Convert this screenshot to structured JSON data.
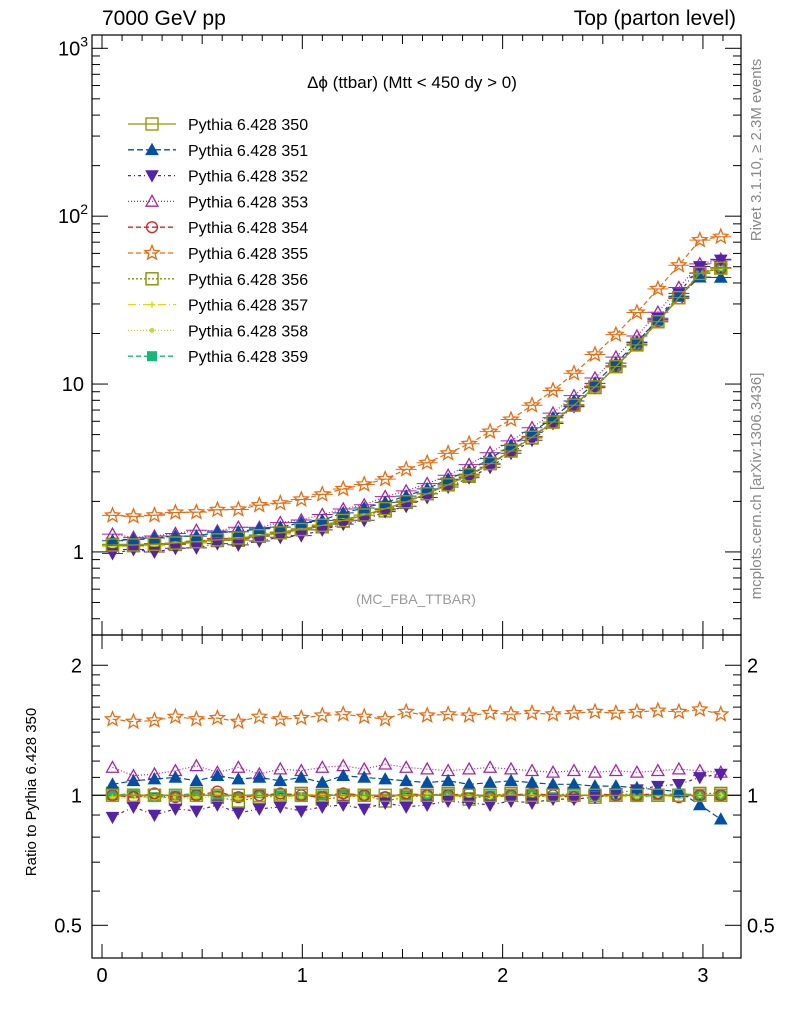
{
  "header": {
    "left": "7000 GeV pp",
    "right": "Top (parton level)"
  },
  "side_labels": {
    "rivet": "Rivet 3.1.10, ≥ 2.3M events",
    "mcplots": "mcplots.cern.ch [arXiv:1306.3436]"
  },
  "chart_data": {
    "type": "line",
    "title": "Δϕ (ttbar) (Mtt < 450 dy > 0)",
    "analysis_tag": "(MC_FBA_TTBAR)",
    "ratio_ylabel": "Ratio to Pythia 6.428 350",
    "main_ylim": [
      0.32,
      1200
    ],
    "main_yscale": "log",
    "ratio_ylim": [
      0.42,
      2.35
    ],
    "ratio_yscale": "log",
    "xlim": [
      -0.05,
      3.19
    ],
    "xticks": [
      {
        "v": 0,
        "label": "0"
      },
      {
        "v": 1,
        "label": "1"
      },
      {
        "v": 2,
        "label": "2"
      },
      {
        "v": 3,
        "label": "3"
      }
    ],
    "main_yticks": [
      {
        "v": 1,
        "label": "1"
      },
      {
        "v": 10,
        "label": "10"
      },
      {
        "v": 100,
        "label": "10",
        "sup": "2"
      },
      {
        "v": 1000,
        "label": "10",
        "sup": "3"
      }
    ],
    "ratio_yticks": [
      {
        "v": 0.5,
        "label": "0.5"
      },
      {
        "v": 1,
        "label": "1"
      },
      {
        "v": 2,
        "label": "2"
      }
    ],
    "x": [
      0.0524,
      0.1571,
      0.2618,
      0.3665,
      0.4712,
      0.576,
      0.6807,
      0.7854,
      0.8901,
      0.9948,
      1.0996,
      1.2043,
      1.309,
      1.4137,
      1.5184,
      1.6232,
      1.7279,
      1.8326,
      1.9373,
      2.042,
      2.1468,
      2.2515,
      2.3562,
      2.4609,
      2.5656,
      2.6704,
      2.7751,
      2.8798,
      2.9845,
      3.0892
    ],
    "reference_values": [
      1.1,
      1.1,
      1.11,
      1.13,
      1.15,
      1.18,
      1.21,
      1.25,
      1.3,
      1.36,
      1.44,
      1.54,
      1.66,
      1.81,
      1.99,
      2.22,
      2.51,
      2.88,
      3.36,
      3.99,
      4.82,
      5.94,
      7.48,
      9.62,
      12.7,
      17.1,
      23.5,
      32.7,
      45.6,
      49.0
    ],
    "series": [
      {
        "name": "Pythia 6.428 350",
        "color": "#999900",
        "dash": "",
        "marker": "square-open",
        "ratio": [
          1,
          1,
          1,
          1,
          1,
          1,
          1,
          1,
          1,
          1,
          1,
          1,
          1,
          1,
          1,
          1,
          1,
          1,
          1,
          1,
          1,
          1,
          1,
          1,
          1,
          1,
          1,
          1,
          1,
          1
        ]
      },
      {
        "name": "Pythia 6.428 351",
        "color": "#0050a8",
        "dash": "6,3",
        "marker": "triangle-up",
        "ratio": [
          1.06,
          1.08,
          1.09,
          1.1,
          1.08,
          1.11,
          1.09,
          1.1,
          1.08,
          1.1,
          1.07,
          1.11,
          1.1,
          1.09,
          1.08,
          1.07,
          1.08,
          1.06,
          1.07,
          1.08,
          1.07,
          1.06,
          1.06,
          1.05,
          1.05,
          1.04,
          1.03,
          1.02,
          0.95,
          0.88
        ]
      },
      {
        "name": "Pythia 6.428 352",
        "color": "#5522aa",
        "dash": "3,3,1,3",
        "marker": "triangle-down",
        "ratio": [
          0.89,
          0.94,
          0.9,
          0.93,
          0.92,
          0.95,
          0.91,
          0.93,
          0.94,
          0.92,
          0.94,
          0.95,
          0.93,
          0.96,
          0.94,
          0.95,
          0.97,
          0.96,
          0.95,
          0.97,
          0.96,
          0.98,
          0.98,
          0.99,
          1.01,
          1.03,
          1.05,
          1.06,
          1.1,
          1.12
        ]
      },
      {
        "name": "Pythia 6.428 353",
        "color": "#aa22aa",
        "dash": "1,2",
        "marker": "triangle-open",
        "ratio": [
          1.16,
          1.11,
          1.12,
          1.14,
          1.17,
          1.13,
          1.16,
          1.12,
          1.15,
          1.14,
          1.16,
          1.17,
          1.15,
          1.18,
          1.16,
          1.15,
          1.14,
          1.15,
          1.16,
          1.15,
          1.14,
          1.13,
          1.14,
          1.13,
          1.14,
          1.13,
          1.14,
          1.15,
          1.14,
          1.13
        ]
      },
      {
        "name": "Pythia 6.428 354",
        "color": "#dd2222",
        "dash": "5,3",
        "marker": "circle-open",
        "ratio": [
          1.0,
          0.99,
          1.01,
          0.99,
          1.0,
          1.02,
          0.99,
          1.0,
          1.01,
          1.0,
          0.99,
          1.01,
          1.0,
          0.99,
          1.01,
          1.0,
          1.0,
          1.01,
          0.99,
          1.0,
          1.01,
          1.0,
          0.99,
          1.01,
          1.0,
          1.0,
          1.01,
          0.99,
          1.0,
          1.0
        ]
      },
      {
        "name": "Pythia 6.428 355",
        "color": "#ee6a10",
        "dash": "5,3",
        "marker": "star-open",
        "ratio": [
          1.5,
          1.48,
          1.49,
          1.52,
          1.5,
          1.51,
          1.48,
          1.52,
          1.5,
          1.51,
          1.53,
          1.54,
          1.52,
          1.5,
          1.56,
          1.53,
          1.54,
          1.53,
          1.55,
          1.54,
          1.55,
          1.54,
          1.55,
          1.56,
          1.55,
          1.56,
          1.57,
          1.56,
          1.58,
          1.54
        ]
      },
      {
        "name": "Pythia 6.428 356",
        "color": "#779900",
        "dash": "2,2",
        "marker": "square-open",
        "ratio": [
          1.01,
          0.99,
          1.0,
          0.98,
          1.01,
          0.99,
          0.97,
          0.99,
          1.0,
          1.01,
          0.98,
          0.99,
          1.0,
          0.97,
          0.99,
          1.0,
          1.01,
          0.98,
          1.0,
          1.01,
          0.99,
          1.0,
          1.01,
          0.99,
          1.0,
          1.01,
          1.0,
          1.0,
          1.01,
          1.01
        ]
      },
      {
        "name": "Pythia 6.428 357",
        "color": "#dddd00",
        "dash": "8,3,1,3",
        "marker": "cross-small",
        "ratio": [
          0.99,
          1.0,
          0.98,
          1.0,
          0.99,
          1.01,
          0.98,
          1.0,
          0.99,
          1.0,
          1.01,
          0.99,
          1.0,
          0.99,
          1.0,
          1.01,
          0.99,
          1.0,
          0.99,
          1.0,
          1.0,
          0.99,
          1.0,
          1.0,
          0.99,
          1.0,
          1.0,
          0.99,
          1.0,
          1.0
        ]
      },
      {
        "name": "Pythia 6.428 358",
        "color": "#bbdd33",
        "dash": "1,2",
        "marker": "dot-small",
        "ratio": [
          0.98,
          0.99,
          1.0,
          0.99,
          0.98,
          1.0,
          0.99,
          1.0,
          0.98,
          0.99,
          1.0,
          1.0,
          0.99,
          1.0,
          0.99,
          1.0,
          1.0,
          0.99,
          0.99,
          1.0,
          1.0,
          0.99,
          1.0,
          1.0,
          1.0,
          0.99,
          1.0,
          1.0,
          1.0,
          1.0
        ]
      },
      {
        "name": "Pythia 6.428 359",
        "color": "#11bb77",
        "dash": "5,3",
        "marker": "square-filled",
        "ratio": [
          1.0,
          1.01,
          0.99,
          1.0,
          1.01,
          1.0,
          0.99,
          1.01,
          1.0,
          0.99,
          1.0,
          1.01,
          1.0,
          0.99,
          1.0,
          1.0,
          1.01,
          0.99,
          1.0,
          1.0,
          1.01,
          0.99,
          1.0,
          1.0,
          1.0,
          0.99,
          1.0,
          1.01,
          1.0,
          1.0
        ]
      }
    ]
  }
}
